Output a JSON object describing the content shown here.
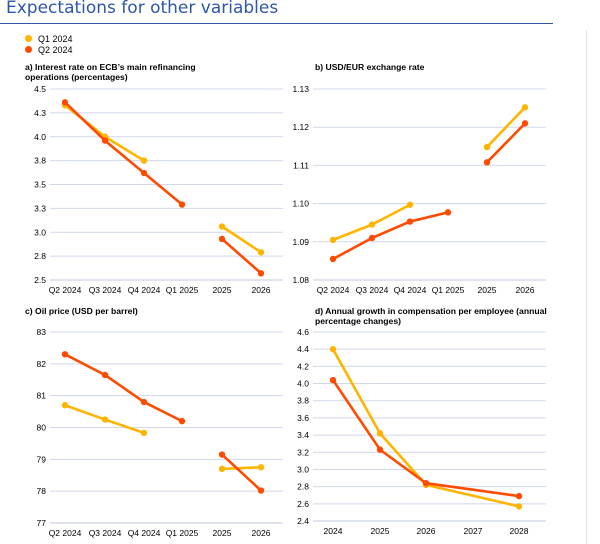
{
  "page": {
    "title": "Expectations for other variables"
  },
  "legend": [
    {
      "label": "Q1 2024",
      "color": "#ffb400"
    },
    {
      "label": "Q2 2024",
      "color": "#ff4b00"
    }
  ],
  "chart_data": [
    {
      "type": "line",
      "title": "a) Interest rate on ECB’s main refinancing operations (percentages)",
      "categories": [
        "Q2 2024",
        "Q3 2024",
        "Q4 2024",
        "Q1 2025",
        "2025",
        "2026"
      ],
      "yticks": [
        "4.5",
        "4.3",
        "4.0",
        "3.8",
        "3.5",
        "3.3",
        "3.0",
        "2.8",
        "2.5"
      ],
      "ylim": [
        2.5,
        4.5
      ],
      "series": [
        {
          "name": "Q1 2024",
          "color": "#ffb400",
          "segments": [
            [
              [
                0,
                4.33
              ],
              [
                1,
                4.0
              ],
              [
                2,
                3.75
              ]
            ],
            [
              [
                4,
                3.06
              ],
              [
                5,
                2.79
              ]
            ]
          ]
        },
        {
          "name": "Q2 2024",
          "color": "#ff4b00",
          "segments": [
            [
              [
                0,
                4.36
              ],
              [
                1,
                3.96
              ],
              [
                2,
                3.62
              ],
              [
                3,
                3.29
              ]
            ],
            [
              [
                4,
                2.93
              ],
              [
                5,
                2.57
              ]
            ]
          ]
        }
      ]
    },
    {
      "type": "line",
      "title": "b) USD/EUR exchange rate",
      "categories": [
        "Q2 2024",
        "Q3 2024",
        "Q4 2024",
        "Q1 2025",
        "2025",
        "2026"
      ],
      "yticks": [
        "1.13",
        "1.12",
        "1.11",
        "1.10",
        "1.09",
        "1.08"
      ],
      "ylim": [
        1.08,
        1.13
      ],
      "series": [
        {
          "name": "Q1 2024",
          "color": "#ffb400",
          "segments": [
            [
              [
                0,
                1.0905
              ],
              [
                1,
                1.0945
              ],
              [
                2,
                1.0997
              ]
            ],
            [
              [
                4,
                1.1148
              ],
              [
                5,
                1.1252
              ]
            ]
          ]
        },
        {
          "name": "Q2 2024",
          "color": "#ff4b00",
          "segments": [
            [
              [
                0,
                1.0855
              ],
              [
                1,
                1.091
              ],
              [
                2,
                1.0953
              ],
              [
                3,
                1.0977
              ]
            ],
            [
              [
                4,
                1.1108
              ],
              [
                5,
                1.121
              ]
            ]
          ]
        }
      ]
    },
    {
      "type": "line",
      "title": "c) Oil price (USD per barrel)",
      "categories": [
        "Q2 2024",
        "Q3 2024",
        "Q4 2024",
        "Q1 2025",
        "2025",
        "2026"
      ],
      "yticks": [
        "83",
        "82",
        "81",
        "80",
        "79",
        "78",
        "77"
      ],
      "ylim": [
        77,
        83
      ],
      "series": [
        {
          "name": "Q1 2024",
          "color": "#ffb400",
          "segments": [
            [
              [
                0,
                80.7
              ],
              [
                1,
                80.25
              ],
              [
                2,
                79.83
              ]
            ],
            [
              [
                4,
                78.7
              ],
              [
                5,
                78.75
              ]
            ]
          ]
        },
        {
          "name": "Q2 2024",
          "color": "#ff4b00",
          "segments": [
            [
              [
                0,
                82.3
              ],
              [
                1,
                81.65
              ],
              [
                2,
                80.8
              ],
              [
                3,
                80.2
              ]
            ],
            [
              [
                4,
                79.15
              ],
              [
                5,
                78.02
              ]
            ]
          ]
        }
      ]
    },
    {
      "type": "line",
      "title": "d) Annual growth in compensation per employee (annual percentage changes)",
      "categories": [
        "2024",
        "2025",
        "2026",
        "2027",
        "2028"
      ],
      "yticks": [
        "4.6",
        "4.4",
        "4.2",
        "4.0",
        "3.8",
        "3.6",
        "3.4",
        "3.2",
        "3.0",
        "2.8",
        "2.6",
        "2.4"
      ],
      "ylim": [
        2.4,
        4.6
      ],
      "series": [
        {
          "name": "Q1 2024",
          "color": "#ffb400",
          "segments": [
            [
              [
                0,
                4.4
              ],
              [
                1,
                3.42
              ],
              [
                2,
                2.82
              ],
              [
                4,
                2.57
              ]
            ]
          ]
        },
        {
          "name": "Q2 2024",
          "color": "#ff4b00",
          "segments": [
            [
              [
                0,
                4.04
              ],
              [
                1,
                3.23
              ],
              [
                2,
                2.84
              ],
              [
                4,
                2.69
              ]
            ]
          ]
        }
      ]
    }
  ]
}
